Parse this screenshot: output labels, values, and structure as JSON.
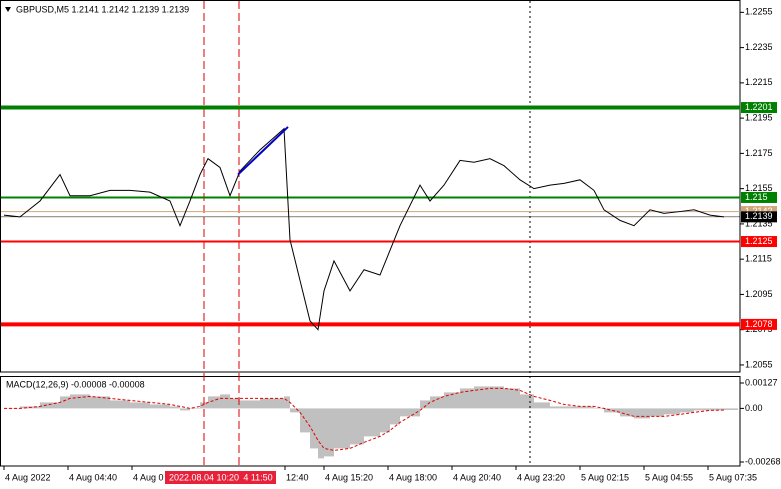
{
  "chart_data": [
    {
      "type": "line",
      "title": "GBPUSD,M5  1.2141 1.2142 1.2139 1.2139",
      "color": "#000000",
      "x": [
        0,
        8,
        18,
        28,
        33,
        43,
        53,
        63,
        73,
        83,
        88,
        93,
        98,
        102,
        108,
        113,
        118,
        128,
        140,
        143,
        148,
        153,
        157,
        160,
        165,
        173,
        180,
        188,
        193,
        198,
        208,
        213,
        220,
        228,
        235,
        243,
        250,
        258,
        265,
        273,
        280,
        288,
        295,
        300,
        308,
        315,
        323,
        330,
        338,
        345,
        353,
        360
      ],
      "values": [
        1.214,
        1.2139,
        1.2148,
        1.2163,
        1.2151,
        1.2151,
        1.2154,
        1.2154,
        1.2153,
        1.2148,
        1.2134,
        1.2148,
        1.2163,
        1.2172,
        1.2167,
        1.2151,
        1.2165,
        1.2177,
        1.2189,
        1.2126,
        1.2103,
        1.208,
        1.2075,
        1.2097,
        1.2114,
        1.2097,
        1.2109,
        1.2106,
        1.212,
        1.2134,
        1.2157,
        1.2148,
        1.2157,
        1.2171,
        1.217,
        1.2172,
        1.2168,
        1.216,
        1.2155,
        1.2157,
        1.2158,
        1.216,
        1.2154,
        1.2143,
        1.2137,
        1.2134,
        1.2143,
        1.2141,
        1.2142,
        1.2143,
        1.214,
        1.2139
      ],
      "xlim": [
        0,
        368
      ],
      "ylim": [
        1.2051,
        1.2262
      ],
      "yticks": [
        1.2255,
        1.2235,
        1.2215,
        1.2195,
        1.2175,
        1.2155,
        1.2135,
        1.2115,
        1.2095,
        1.2075,
        1.2055
      ],
      "xticks": [
        {
          "value": 0,
          "label": "4 Aug 2022"
        },
        {
          "value": 32,
          "label": "4 Aug 04:40"
        },
        {
          "value": 64,
          "label": "4 Aug 0"
        },
        {
          "value": 140.5,
          "label": "12:40"
        },
        {
          "value": 160,
          "label": "4 Aug 15:20"
        },
        {
          "value": 192,
          "label": "4 Aug 18:00"
        },
        {
          "value": 224,
          "label": "4 Aug 20:40"
        },
        {
          "value": 256,
          "label": "4 Aug 23:20"
        },
        {
          "value": 288,
          "label": "5 Aug 02:15"
        },
        {
          "value": 320,
          "label": "5 Aug 04:55"
        },
        {
          "value": 352,
          "label": "5 Aug 07:35"
        }
      ],
      "trendline": {
        "x": [
          117,
          142
        ],
        "values": [
          1.2163,
          1.219
        ],
        "color": "#0000cc"
      },
      "levels": [
        {
          "value": 1.2201,
          "color": "#008000",
          "width": 4
        },
        {
          "value": 1.215,
          "color": "#008000",
          "width": 2
        },
        {
          "value": 1.2142,
          "color": "#d2a679",
          "width": 1
        },
        {
          "value": 1.2139,
          "color": "#000000",
          "width": 0.5
        },
        {
          "value": 1.2125,
          "color": "#ff0000",
          "width": 2
        },
        {
          "value": 1.2078,
          "color": "#ff0000",
          "width": 4
        }
      ],
      "vlines": [
        {
          "x": 100,
          "color": "#e00000",
          "style": "dashed"
        },
        {
          "x": 117.5,
          "color": "#e00000",
          "style": "dashed"
        },
        {
          "x": 263,
          "color": "#000000",
          "style": "dotted"
        }
      ],
      "crosshair_labels": [
        {
          "x": 100,
          "label": "2022.08.04 10:20"
        },
        {
          "x": 118,
          "label": "4 11:50"
        }
      ]
    },
    {
      "type": "macd",
      "title": "MACD(12,26,9) -0.00008 -0.00008",
      "x": [
        0,
        8,
        18,
        28,
        33,
        43,
        53,
        63,
        73,
        83,
        88,
        93,
        98,
        102,
        108,
        113,
        118,
        128,
        140,
        143,
        148,
        153,
        157,
        160,
        165,
        173,
        180,
        188,
        193,
        198,
        208,
        213,
        220,
        228,
        235,
        243,
        250,
        258,
        265,
        273,
        280,
        288,
        295,
        300,
        308,
        315,
        323,
        330,
        338,
        345,
        353,
        360
      ],
      "histogram": {
        "color": "#c0c0c0",
        "values": [
          0,
          0.0001,
          0.0003,
          0.0006,
          0.0007,
          0.0006,
          0.0004,
          0.0003,
          0.0002,
          0.0001,
          -0.0001,
          0,
          0.0003,
          0.0006,
          0.0007,
          0.0005,
          0.0004,
          0.0005,
          0.0006,
          -0.0002,
          -0.0012,
          -0.002,
          -0.0025,
          -0.0024,
          -0.002,
          -0.0018,
          -0.0014,
          -0.0012,
          -0.0008,
          -0.0004,
          0.0004,
          0.0006,
          0.0008,
          0.001,
          0.0011,
          0.0011,
          0.001,
          0.0007,
          0.0003,
          0.0001,
          0.0001,
          0.0001,
          0,
          -0.0002,
          -0.0004,
          -0.0005,
          -0.0004,
          -0.0003,
          -0.0002,
          -0.0001,
          -0.0001,
          -8e-05
        ]
      },
      "signal": {
        "color": "#e00000",
        "values": [
          0,
          0,
          0.0001,
          0.0003,
          0.0005,
          0.0006,
          0.0005,
          0.0004,
          0.0003,
          0.0002,
          0.0001,
          0,
          0.0001,
          0.0003,
          0.0005,
          0.0005,
          0.0005,
          0.0005,
          0.0005,
          0.0003,
          -0.0002,
          -0.0009,
          -0.0016,
          -0.002,
          -0.0021,
          -0.002,
          -0.0017,
          -0.0014,
          -0.0011,
          -0.0007,
          -0.0001,
          0.0003,
          0.0006,
          0.0008,
          0.0009,
          0.001,
          0.001,
          0.0009,
          0.0006,
          0.0004,
          0.0002,
          0.0001,
          0.0001,
          0,
          -0.0002,
          -0.0004,
          -0.0004,
          -0.0004,
          -0.0003,
          -0.0002,
          -0.0001,
          -8e-05
        ]
      },
      "xlim": [
        0,
        368
      ],
      "ylim": [
        -0.00288,
        0.00157
      ],
      "yticks": [
        0.00127,
        {
          "value": 0,
          "label": "0.00"
        },
        -0.00268
      ]
    }
  ]
}
